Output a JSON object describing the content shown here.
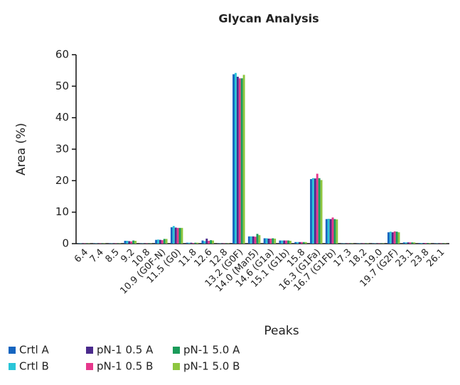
{
  "chart_data": {
    "type": "bar",
    "title": "Glycan Analysis",
    "x_label": "Peaks",
    "y_label": "Area (%)",
    "categories": [
      "6.4",
      "7.4",
      "8.5",
      "9.2",
      "10.8",
      "10.9 (G0F-N)",
      "11.5 (G0)",
      "11.8",
      "12.6",
      "12.8",
      "13.2 (G0F)",
      "14.0 (Man5)",
      "14.6 (G1a)",
      "15.1 (G1b)",
      "15.8",
      "16.3 (G1Fa)",
      "16.7 (G1Fb)",
      "17.3",
      "18.2",
      "19.0",
      "19.7 (G2F)",
      "23.1",
      "23.8",
      "26.1"
    ],
    "series": [
      {
        "name": "Crtl A",
        "color": "#1565c0",
        "values": [
          0.1,
          0.1,
          0.1,
          0.9,
          0.1,
          1.2,
          5.2,
          0.3,
          1.0,
          0.1,
          53.8,
          2.3,
          1.7,
          1.0,
          0.5,
          20.5,
          7.8,
          0.1,
          0.1,
          0.1,
          3.6,
          0.4,
          0.2,
          0.1
        ]
      },
      {
        "name": "Crtl B",
        "color": "#29c5d8",
        "values": [
          0.1,
          0.1,
          0.1,
          0.9,
          0.1,
          1.3,
          5.6,
          0.3,
          0.8,
          0.1,
          54.2,
          2.3,
          1.7,
          1.0,
          0.5,
          20.8,
          7.9,
          0.1,
          0.1,
          0.1,
          3.8,
          0.4,
          0.2,
          0.1
        ]
      },
      {
        "name": "pN-1 0.5 A",
        "color": "#4a2a8c",
        "values": [
          0.1,
          0.1,
          0.1,
          0.8,
          0.1,
          1.2,
          5.1,
          0.3,
          1.6,
          0.1,
          53.0,
          2.3,
          1.6,
          1.0,
          0.5,
          20.7,
          7.8,
          0.1,
          0.1,
          0.1,
          3.6,
          0.4,
          0.2,
          0.1
        ]
      },
      {
        "name": "pN-1 0.5 B",
        "color": "#e6388c",
        "values": [
          0.1,
          0.1,
          0.1,
          0.7,
          0.1,
          1.1,
          5.0,
          0.2,
          0.9,
          0.1,
          52.5,
          2.2,
          1.6,
          1.0,
          0.5,
          22.2,
          8.3,
          0.1,
          0.1,
          0.1,
          3.9,
          0.4,
          0.2,
          0.1
        ]
      },
      {
        "name": "pN-1 5.0 A",
        "color": "#1a9b5a",
        "values": [
          0.1,
          0.1,
          0.1,
          1.0,
          0.1,
          1.5,
          5.0,
          0.3,
          1.1,
          0.1,
          52.5,
          3.1,
          1.7,
          1.0,
          0.5,
          20.8,
          7.8,
          0.1,
          0.1,
          0.1,
          3.8,
          0.4,
          0.2,
          0.1
        ]
      },
      {
        "name": "pN-1 5.0 B",
        "color": "#8dc63f",
        "values": [
          0.1,
          0.1,
          0.1,
          0.9,
          0.1,
          1.5,
          5.0,
          0.3,
          1.0,
          0.1,
          53.6,
          2.7,
          1.6,
          0.9,
          0.5,
          20.2,
          7.7,
          0.1,
          0.1,
          0.1,
          3.6,
          0.4,
          0.2,
          0.1
        ]
      }
    ],
    "ylim": [
      0,
      60
    ],
    "yticks": [
      0,
      10,
      20,
      30,
      40,
      50,
      60
    ],
    "grid": false,
    "legend": "bottom-left"
  }
}
